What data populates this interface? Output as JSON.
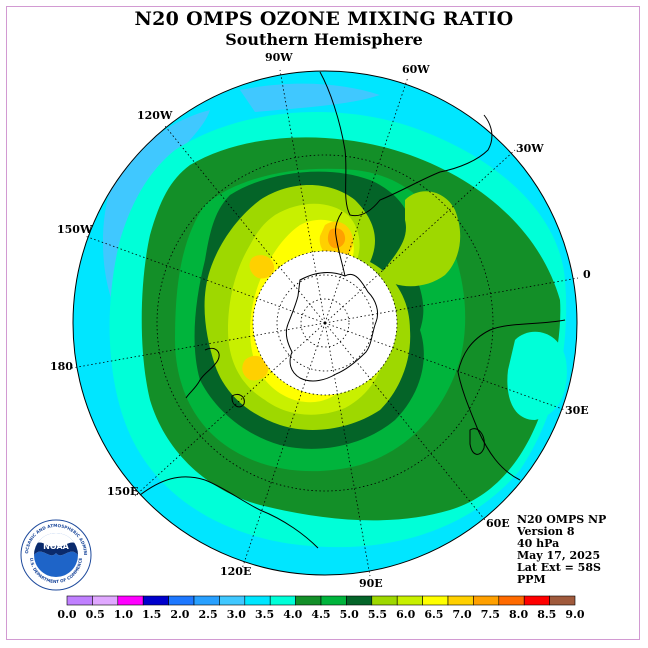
{
  "header": {
    "title": "N20 OMPS OZONE MIXING RATIO",
    "subtitle": "Southern Hemisphere"
  },
  "map": {
    "projection": "polar-stereographic-south",
    "longitude_labels": [
      "90W",
      "60W",
      "30W",
      "0",
      "30E",
      "60E",
      "90E",
      "120E",
      "150E",
      "180",
      "150W",
      "120W"
    ],
    "colors": {
      "ocean_cyan": "#00e6ff",
      "light_blue": "#40c8ff",
      "aquamarine": "#00ffd8",
      "green_4": "#138f28",
      "green_45": "#00b43c",
      "dark_green": "#046428",
      "yellow_green": "#9ed800",
      "light_yellow_green": "#c8f000",
      "yellow": "#ffff00",
      "gold": "#ffd000",
      "orange": "#ffa000"
    }
  },
  "info": {
    "lines": [
      "N20 OMPS NP",
      "Version 8",
      "40 hPa",
      "May 17, 2025",
      "Lat Ext = 58S",
      "PPM"
    ]
  },
  "logo": {
    "text": "NOAA",
    "ring_text": "NATIONAL OCEANIC AND ATMOSPHERIC ADMINISTRATION",
    "ring_text_bottom": "U.S. DEPARTMENT OF COMMERCE"
  },
  "colorbar": {
    "labels": [
      "0.0",
      "0.5",
      "1.0",
      "1.5",
      "2.0",
      "2.5",
      "3.0",
      "3.5",
      "4.0",
      "4.5",
      "5.0",
      "5.5",
      "6.0",
      "6.5",
      "7.0",
      "7.5",
      "8.0",
      "8.5",
      "9.0"
    ],
    "colors": [
      "#c080ff",
      "#e0a8ff",
      "#ff00ff",
      "#0000cc",
      "#1e78ff",
      "#28a0ff",
      "#40c8ff",
      "#00e6ff",
      "#00ffd8",
      "#138f28",
      "#00b43c",
      "#046428",
      "#9ed800",
      "#c8f000",
      "#ffff00",
      "#ffd000",
      "#ffa000",
      "#ff6a00",
      "#ff0000",
      "#a05a3c"
    ]
  }
}
